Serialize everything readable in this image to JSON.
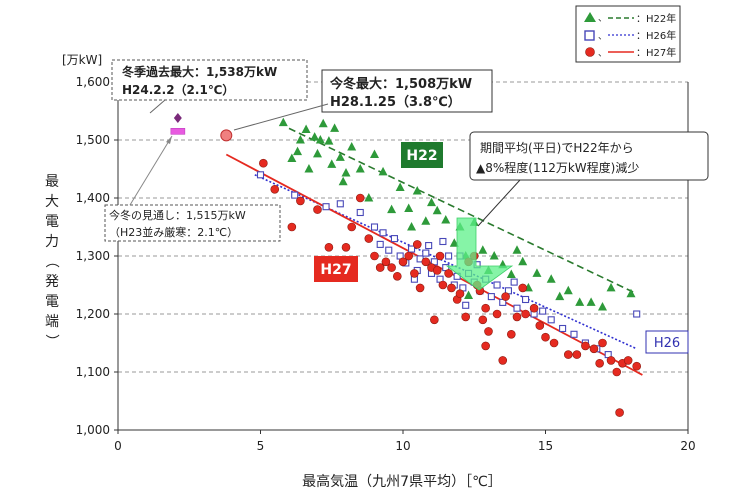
{
  "chart_data": {
    "type": "scatter",
    "xlabel": "最高気温（九州7県平均）［℃］",
    "ylabel": "最大電力（発電端）",
    "yunit": "[万kW]",
    "xlim": [
      0,
      20
    ],
    "ylim": [
      1000,
      1600
    ],
    "x_ticks": [
      "0",
      "5",
      "10",
      "15",
      "20"
    ],
    "y_ticks": [
      "1,000",
      "1,100",
      "1,200",
      "1,300",
      "1,400",
      "1,500",
      "1,600"
    ],
    "grid": "horizontal-dashed",
    "legend": {
      "placement": "top-right",
      "entries": [
        "：H22年",
        "：H26年",
        "：H27年"
      ]
    },
    "series": [
      {
        "name": "H22",
        "marker": "triangle",
        "color": "#2e9a3a",
        "points": [
          [
            5.8,
            1530
          ],
          [
            6.1,
            1468
          ],
          [
            6.4,
            1500
          ],
          [
            6.6,
            1518
          ],
          [
            6.7,
            1450
          ],
          [
            6.9,
            1505
          ],
          [
            7.0,
            1476
          ],
          [
            7.1,
            1500
          ],
          [
            7.2,
            1528
          ],
          [
            7.4,
            1498
          ],
          [
            7.5,
            1458
          ],
          [
            7.6,
            1520
          ],
          [
            7.8,
            1470
          ],
          [
            8.0,
            1443
          ],
          [
            8.2,
            1488
          ],
          [
            8.5,
            1450
          ],
          [
            8.8,
            1400
          ],
          [
            9.0,
            1475
          ],
          [
            9.3,
            1445
          ],
          [
            9.6,
            1380
          ],
          [
            9.9,
            1418
          ],
          [
            10.2,
            1382
          ],
          [
            10.5,
            1412
          ],
          [
            10.8,
            1360
          ],
          [
            11.0,
            1392
          ],
          [
            11.2,
            1378
          ],
          [
            11.5,
            1362
          ],
          [
            11.8,
            1322
          ],
          [
            12.0,
            1350
          ],
          [
            12.2,
            1300
          ],
          [
            12.5,
            1358
          ],
          [
            12.8,
            1310
          ],
          [
            13.0,
            1275
          ],
          [
            13.2,
            1300
          ],
          [
            13.5,
            1285
          ],
          [
            13.8,
            1268
          ],
          [
            14.0,
            1310
          ],
          [
            14.2,
            1290
          ],
          [
            14.4,
            1245
          ],
          [
            14.7,
            1270
          ],
          [
            15.2,
            1260
          ],
          [
            15.5,
            1230
          ],
          [
            15.8,
            1240
          ],
          [
            16.2,
            1220
          ],
          [
            16.6,
            1220
          ],
          [
            17.0,
            1212
          ],
          [
            17.3,
            1245
          ],
          [
            18.0,
            1235
          ],
          [
            12.3,
            1232
          ],
          [
            10.3,
            1350
          ],
          [
            7.9,
            1428
          ],
          [
            6.3,
            1480
          ]
        ]
      },
      {
        "name": "H26",
        "marker": "square",
        "color": "#4848b8",
        "points": [
          [
            5.0,
            1440
          ],
          [
            6.2,
            1405
          ],
          [
            7.3,
            1385
          ],
          [
            7.8,
            1390
          ],
          [
            8.5,
            1375
          ],
          [
            9.0,
            1350
          ],
          [
            9.2,
            1320
          ],
          [
            9.5,
            1310
          ],
          [
            9.7,
            1330
          ],
          [
            9.9,
            1300
          ],
          [
            10.1,
            1288
          ],
          [
            10.3,
            1312
          ],
          [
            10.5,
            1275
          ],
          [
            10.6,
            1295
          ],
          [
            10.8,
            1305
          ],
          [
            11.0,
            1270
          ],
          [
            11.1,
            1290
          ],
          [
            11.3,
            1260
          ],
          [
            11.5,
            1280
          ],
          [
            11.6,
            1300
          ],
          [
            11.8,
            1250
          ],
          [
            12.0,
            1300
          ],
          [
            12.1,
            1245
          ],
          [
            12.3,
            1270
          ],
          [
            12.5,
            1255
          ],
          [
            12.7,
            1240
          ],
          [
            12.9,
            1260
          ],
          [
            13.1,
            1230
          ],
          [
            13.3,
            1250
          ],
          [
            13.5,
            1220
          ],
          [
            13.7,
            1240
          ],
          [
            14.0,
            1210
          ],
          [
            14.3,
            1225
          ],
          [
            14.6,
            1200
          ],
          [
            14.9,
            1205
          ],
          [
            15.2,
            1190
          ],
          [
            15.6,
            1175
          ],
          [
            16.0,
            1165
          ],
          [
            16.4,
            1150
          ],
          [
            16.8,
            1140
          ],
          [
            17.2,
            1130
          ],
          [
            18.2,
            1200
          ],
          [
            9.3,
            1340
          ],
          [
            10.9,
            1318
          ],
          [
            11.4,
            1325
          ],
          [
            12.6,
            1285
          ],
          [
            13.9,
            1255
          ],
          [
            11.9,
            1265
          ],
          [
            10.4,
            1260
          ],
          [
            12.2,
            1215
          ]
        ]
      },
      {
        "name": "H27",
        "marker": "circle",
        "color": "#e52a20",
        "points": [
          [
            5.1,
            1460
          ],
          [
            5.5,
            1415
          ],
          [
            6.1,
            1350
          ],
          [
            6.4,
            1395
          ],
          [
            7.0,
            1380
          ],
          [
            7.4,
            1315
          ],
          [
            8.0,
            1315
          ],
          [
            8.5,
            1400
          ],
          [
            8.2,
            1350
          ],
          [
            8.8,
            1330
          ],
          [
            9.0,
            1300
          ],
          [
            9.2,
            1280
          ],
          [
            9.4,
            1290
          ],
          [
            9.6,
            1280
          ],
          [
            9.8,
            1265
          ],
          [
            10.0,
            1290
          ],
          [
            10.2,
            1300
          ],
          [
            10.4,
            1270
          ],
          [
            10.5,
            1320
          ],
          [
            10.6,
            1245
          ],
          [
            10.8,
            1290
          ],
          [
            11.0,
            1280
          ],
          [
            11.2,
            1275
          ],
          [
            11.3,
            1300
          ],
          [
            11.4,
            1250
          ],
          [
            11.6,
            1270
          ],
          [
            11.7,
            1245
          ],
          [
            11.9,
            1225
          ],
          [
            12.0,
            1235
          ],
          [
            12.2,
            1195
          ],
          [
            12.3,
            1290
          ],
          [
            12.5,
            1300
          ],
          [
            12.6,
            1250
          ],
          [
            12.7,
            1240
          ],
          [
            12.8,
            1190
          ],
          [
            12.9,
            1210
          ],
          [
            13.0,
            1170
          ],
          [
            13.3,
            1200
          ],
          [
            13.6,
            1230
          ],
          [
            13.8,
            1165
          ],
          [
            14.0,
            1195
          ],
          [
            14.3,
            1200
          ],
          [
            14.6,
            1210
          ],
          [
            14.8,
            1180
          ],
          [
            15.0,
            1160
          ],
          [
            15.3,
            1150
          ],
          [
            15.8,
            1130
          ],
          [
            16.1,
            1130
          ],
          [
            16.4,
            1145
          ],
          [
            16.7,
            1140
          ],
          [
            16.9,
            1115
          ],
          [
            17.0,
            1150
          ],
          [
            17.3,
            1120
          ],
          [
            17.5,
            1100
          ],
          [
            17.7,
            1115
          ],
          [
            17.9,
            1120
          ],
          [
            18.2,
            1110
          ],
          [
            12.9,
            1145
          ],
          [
            13.5,
            1120
          ],
          [
            11.1,
            1190
          ],
          [
            17.6,
            1030
          ],
          [
            14.2,
            1245
          ]
        ]
      }
    ],
    "trendlines": [
      {
        "series": "H22",
        "style": "dashed",
        "color": "#2a7a2e",
        "from": [
          6.0,
          1520
        ],
        "to": [
          18.2,
          1235
        ]
      },
      {
        "series": "H26",
        "style": "dotted",
        "color": "#3030d0",
        "from": [
          4.8,
          1440
        ],
        "to": [
          18.2,
          1140
        ]
      },
      {
        "series": "H27",
        "style": "solid",
        "color": "#e52a20",
        "from": [
          3.8,
          1475
        ],
        "to": [
          18.4,
          1095
        ]
      }
    ],
    "special_points": [
      {
        "marker": "diamond",
        "color": "#7a2a7a",
        "x": 2.1,
        "y": 1538
      },
      {
        "marker": "pink-rect",
        "color": "#e85ae0",
        "x": 2.1,
        "y": 1515
      },
      {
        "marker": "circle-large",
        "color": "#f08080",
        "x": 3.8,
        "y": 1508
      }
    ],
    "annotations": {
      "record_title": "冬季過去最大：1,538万kW",
      "record_date": "H24.2.2（2.1℃）",
      "today_title": "今冬最大：1,508万kW",
      "today_date": "H28.1.25（3.8℃）",
      "outlook_title": "今冬の見通し：1,515万kW",
      "outlook_note": "（H23並み厳寒：2.1℃）",
      "period_line1": "期間平均(平日)でH22年から",
      "period_line2": "▲8%程度(112万kW程度)減少",
      "tag_h22": "H22",
      "tag_h27": "H27",
      "tag_h26": "H26"
    }
  }
}
